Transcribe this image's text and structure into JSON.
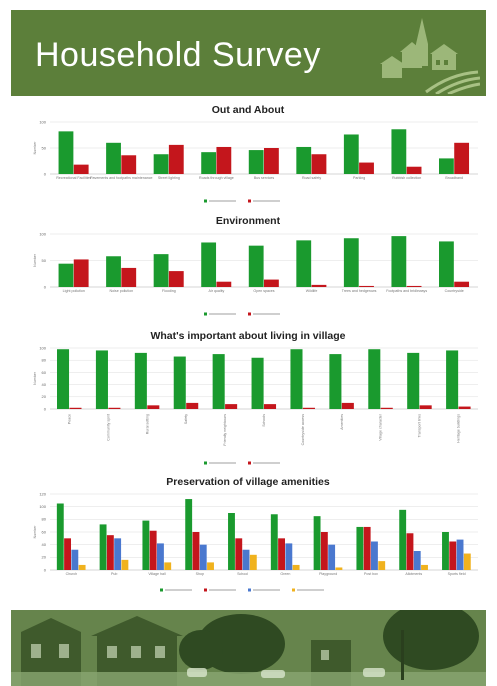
{
  "banner": {
    "title": "Household Survey",
    "bg_color": "#5c7f3a"
  },
  "village_icon_name": "village-church-houses-icon",
  "photo_name": "village-street-photo",
  "colors": {
    "green": "#1a9a2e",
    "red": "#c4161c",
    "blue": "#4a78cf",
    "yellow": "#f0b21e",
    "grid": "#dddddd"
  },
  "chart_data": [
    {
      "type": "bar",
      "title": "Out and About",
      "ylabel": "Number",
      "ylim": [
        0,
        100
      ],
      "yticks": [
        "0",
        "50",
        "100"
      ],
      "categories": [
        "Recreational Facilities",
        "Pavements and footpaths maintenance",
        "Street lighting",
        "Roads through village",
        "Bus services",
        "Road safety",
        "Parking",
        "Rubbish collection",
        "Broadband"
      ],
      "series": [
        {
          "color": "green",
          "values": [
            82,
            60,
            38,
            42,
            46,
            52,
            76,
            86,
            30
          ]
        },
        {
          "color": "red",
          "values": [
            18,
            36,
            56,
            52,
            50,
            38,
            22,
            14,
            60
          ]
        }
      ]
    },
    {
      "type": "bar",
      "title": "Environment",
      "ylabel": "Number",
      "ylim": [
        0,
        100
      ],
      "yticks": [
        "0",
        "50",
        "100"
      ],
      "categories": [
        "Light pollution",
        "Noise pollution",
        "Flooding",
        "Air quality",
        "Open spaces",
        "Wildlife",
        "Trees and hedgerows",
        "Footpaths and bridleways",
        "Countryside"
      ],
      "series": [
        {
          "color": "green",
          "values": [
            44,
            58,
            62,
            84,
            78,
            88,
            92,
            96,
            86
          ]
        },
        {
          "color": "red",
          "values": [
            52,
            36,
            30,
            10,
            14,
            4,
            2,
            2,
            10
          ]
        }
      ]
    },
    {
      "type": "bar",
      "title": "What's important about living in village",
      "ylabel": "Number",
      "ylim": [
        0,
        100
      ],
      "yticks": [
        "0",
        "20",
        "40",
        "60",
        "80",
        "100"
      ],
      "categories": [
        "Peace",
        "Community spirit",
        "Rural setting",
        "Safety",
        "Friendly neighbours",
        "Schools",
        "Countryside access",
        "Amenities",
        "Village character",
        "Transport links",
        "Heritage buildings"
      ],
      "series": [
        {
          "color": "green",
          "values": [
            98,
            96,
            92,
            86,
            90,
            84,
            98,
            90,
            98,
            92,
            96
          ]
        },
        {
          "color": "red",
          "values": [
            2,
            2,
            6,
            10,
            8,
            8,
            2,
            10,
            2,
            6,
            4
          ]
        }
      ]
    },
    {
      "type": "bar",
      "title": "Preservation of village amenities",
      "ylabel": "Number",
      "ylim": [
        0,
        120
      ],
      "yticks": [
        "0",
        "20",
        "40",
        "60",
        "80",
        "100",
        "120"
      ],
      "categories": [
        "Church",
        "Pub",
        "Village hall",
        "Shop",
        "School",
        "Green",
        "Playground",
        "Post box",
        "Allotments",
        "Sports field"
      ],
      "series": [
        {
          "color": "green",
          "values": [
            105,
            72,
            78,
            112,
            90,
            88,
            85,
            68,
            95,
            60
          ]
        },
        {
          "color": "red",
          "values": [
            50,
            55,
            62,
            60,
            50,
            50,
            60,
            68,
            58,
            45
          ]
        },
        {
          "color": "blue",
          "values": [
            32,
            50,
            42,
            40,
            32,
            42,
            40,
            45,
            30,
            48
          ]
        },
        {
          "color": "yellow",
          "values": [
            8,
            16,
            12,
            12,
            24,
            8,
            4,
            14,
            8,
            26
          ]
        }
      ]
    }
  ]
}
